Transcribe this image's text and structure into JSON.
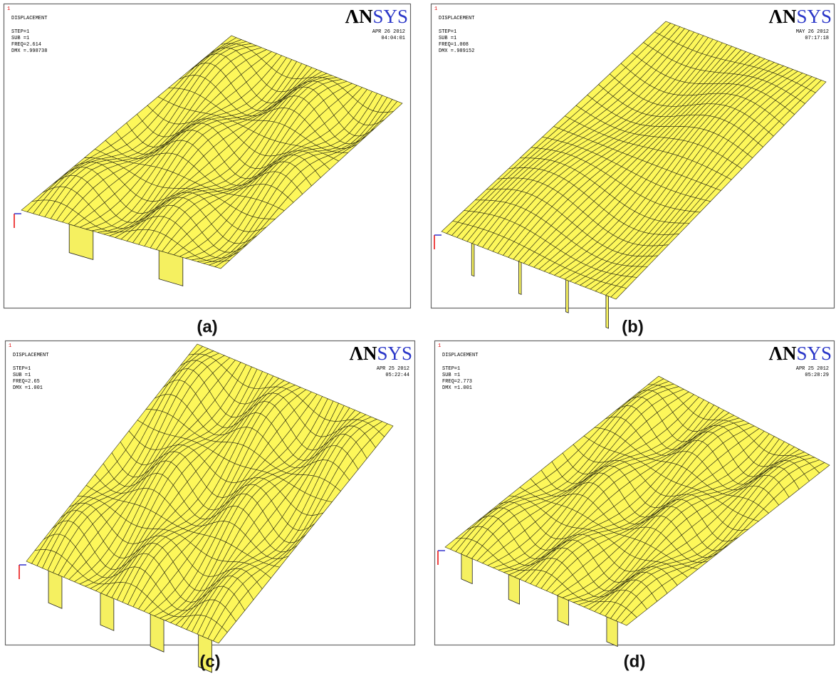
{
  "panels": [
    {
      "caption": "(a)",
      "marker": "1",
      "title": "DISPLACEMENT",
      "lines": [
        "STEP=1",
        "SUB =1",
        "FREQ=2.614",
        "DMX =.998738"
      ],
      "date": "APR 26 2012",
      "time": "04:04:01",
      "logo": {
        "main": "ΛN",
        "accent": "SYS"
      }
    },
    {
      "caption": "(b)",
      "marker": "1",
      "title": "DISPLACEMENT",
      "lines": [
        "STEP=1",
        "SUB =1",
        "FREQ=1.008",
        "DMX =.989152"
      ],
      "date": "MAY 26 2012",
      "time": "07:17:18",
      "logo": {
        "main": "ΛN",
        "accent": "SYS"
      }
    },
    {
      "caption": "(c)",
      "marker": "1",
      "title": "DISPLACEMENT",
      "lines": [
        "STEP=1",
        "SUB =1",
        "FREQ=2.65",
        "DMX =1.001"
      ],
      "date": "APR 25 2012",
      "time": "05:22:44",
      "logo": {
        "main": "ΛN",
        "accent": "SYS"
      }
    },
    {
      "caption": "(d)",
      "marker": "1",
      "title": "DISPLACEMENT",
      "lines": [
        "STEP=1",
        "SUB =1",
        "FREQ=2.773",
        "DMX =1.001"
      ],
      "date": "APR 25 2012",
      "time": "05:28:29",
      "logo": {
        "main": "ΛN",
        "accent": "SYS"
      }
    }
  ]
}
